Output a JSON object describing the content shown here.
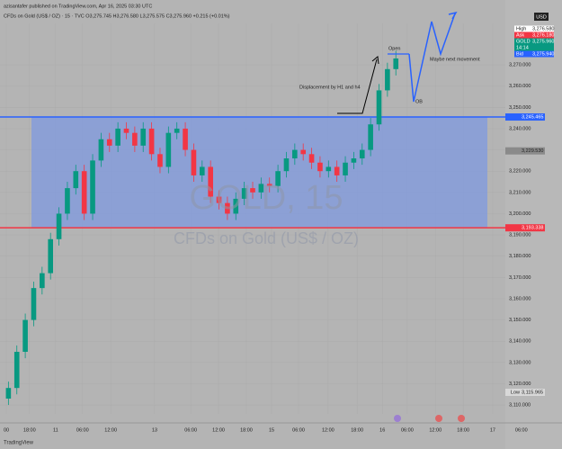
{
  "chart_data": {
    "type": "candlestick",
    "header": "azisantafer published on TradingView.com, Apr 16, 2025 03:30 UTC",
    "subheader": "CFDs on Gold (US$ / OZ) · 15 · TVC  O3,275.745  H3,276.580  L3,275.575  C3,275.960  +0.215 (+0.01%)",
    "watermark": "GOLD, 15",
    "watermark_sub": "CFDs on Gold (US$ / OZ)",
    "annotations": [
      "Displacement by H1 and h4",
      "Open",
      "Maybe next movement",
      "OB"
    ],
    "footer": "TradingView",
    "up_color": "#089981",
    "down_color": "#f23645",
    "xlim": [
      0,
      120
    ],
    "ylim": [
      3105.8,
      3289.5
    ],
    "xticks": [
      {
        "value": 1.5,
        "label": "00"
      },
      {
        "value": 7,
        "label": "18:00"
      },
      {
        "value": 13.2,
        "label": "11"
      },
      {
        "value": 19.6,
        "label": "06:00"
      },
      {
        "value": 26.3,
        "label": "12:00"
      },
      {
        "value": 36.7,
        "label": "13"
      },
      {
        "value": 45.3,
        "label": "06:00"
      },
      {
        "value": 51.9,
        "label": "12:00"
      },
      {
        "value": 58.5,
        "label": "18:00"
      },
      {
        "value": 64.5,
        "label": "15"
      },
      {
        "value": 70.9,
        "label": "06:00"
      },
      {
        "value": 77.9,
        "label": "12:00"
      },
      {
        "value": 84.8,
        "label": "18:00"
      },
      {
        "value": 90.8,
        "label": "16"
      },
      {
        "value": 96.7,
        "label": "06:00"
      },
      {
        "value": 103.4,
        "label": "12:00"
      },
      {
        "value": 110,
        "label": "18:00"
      },
      {
        "value": 117,
        "label": "17"
      },
      {
        "value": 123.8,
        "label": "06:00"
      }
    ],
    "yticks": [
      {
        "value": 3110,
        "label": "3,110.000"
      },
      {
        "value": 3120,
        "label": "3,120.000"
      },
      {
        "value": 3130,
        "label": "3,130.000"
      },
      {
        "value": 3140,
        "label": "3,140.000"
      },
      {
        "value": 3150,
        "label": "3,150.000"
      },
      {
        "value": 3160,
        "label": "3,160.000"
      },
      {
        "value": 3170,
        "label": "3,170.000"
      },
      {
        "value": 3180,
        "label": "3,180.000"
      },
      {
        "value": 3190,
        "label": "3,190.000"
      },
      {
        "value": 3200,
        "label": "3,200.000"
      },
      {
        "value": 3210,
        "label": "3,210.000"
      },
      {
        "value": 3220,
        "label": "3,220.000"
      },
      {
        "value": 3230,
        "label": "3,230.000"
      },
      {
        "value": 3240,
        "label": "3,240.000"
      },
      {
        "value": 3250,
        "label": "3,250.000"
      },
      {
        "value": 3260,
        "label": "3,260.000"
      },
      {
        "value": 3270,
        "label": "3,270.000"
      }
    ],
    "x": [
      2,
      4,
      6,
      8,
      10,
      12,
      14,
      16,
      18,
      20,
      22,
      24,
      26,
      28,
      30,
      32,
      34,
      36,
      38,
      40,
      42,
      44,
      46,
      48,
      50,
      52,
      54,
      56,
      58,
      60,
      62,
      64,
      66,
      68,
      70,
      72,
      74,
      76,
      78,
      80,
      82,
      84,
      86,
      88,
      90,
      92,
      94
    ],
    "open": [
      3113,
      3118,
      3135,
      3150,
      3165,
      3172,
      3188,
      3200,
      3212,
      3220,
      3200,
      3225,
      3235,
      3232,
      3240,
      3238,
      3232,
      3240,
      3228,
      3222,
      3238,
      3240,
      3230,
      3218,
      3222,
      3208,
      3205,
      3200,
      3207,
      3212,
      3210,
      3214,
      3213,
      3220,
      3226,
      3230,
      3228,
      3224,
      3220,
      3222,
      3218,
      3224,
      3226,
      3230,
      3242,
      3258,
      3268
    ],
    "high": [
      3121,
      3138,
      3153,
      3168,
      3175,
      3191,
      3203,
      3215,
      3223,
      3223,
      3228,
      3238,
      3238,
      3243,
      3243,
      3241,
      3243,
      3243,
      3231,
      3241,
      3243,
      3243,
      3233,
      3225,
      3225,
      3211,
      3208,
      3210,
      3215,
      3215,
      3217,
      3217,
      3223,
      3229,
      3233,
      3233,
      3231,
      3227,
      3225,
      3225,
      3227,
      3229,
      3233,
      3245,
      3261,
      3271,
      3276.58
    ],
    "low": [
      3110,
      3115,
      3132,
      3147,
      3162,
      3169,
      3185,
      3197,
      3209,
      3197,
      3197,
      3222,
      3229,
      3229,
      3235,
      3229,
      3229,
      3225,
      3219,
      3219,
      3235,
      3227,
      3215,
      3215,
      3205,
      3202,
      3197,
      3197,
      3204,
      3207,
      3207,
      3210,
      3210,
      3217,
      3223,
      3225,
      3221,
      3217,
      3217,
      3215,
      3215,
      3221,
      3223,
      3227,
      3239,
      3255,
      3265
    ],
    "close": [
      3118,
      3135,
      3150,
      3165,
      3172,
      3188,
      3200,
      3212,
      3220,
      3200,
      3225,
      3235,
      3232,
      3240,
      3238,
      3232,
      3240,
      3228,
      3222,
      3238,
      3240,
      3230,
      3218,
      3222,
      3208,
      3205,
      3200,
      3207,
      3212,
      3210,
      3214,
      3213,
      3220,
      3226,
      3230,
      3228,
      3224,
      3220,
      3222,
      3218,
      3224,
      3226,
      3230,
      3242,
      3258,
      3268,
      3273
    ],
    "zone": {
      "top": 3245.465,
      "bottom": 3193.338,
      "color": "#7f9ae0"
    },
    "levels": [
      {
        "value": 3245.465,
        "label": "3,245.465",
        "color": "#2962ff"
      },
      {
        "value": 3193.338,
        "label": "3,193.338",
        "color": "#f23645"
      },
      {
        "value": 3229.53,
        "label": "3,229.530",
        "color": "#8a8a8a"
      },
      {
        "value": 3115.965,
        "label": "3,115.965",
        "name": "Low",
        "color": "#d8d8d8"
      }
    ],
    "quote": [
      {
        "name": "High",
        "label": "3,276.580",
        "color": "#ffffff"
      },
      {
        "name": "Ask",
        "label": "3,276.180",
        "color": "#f23645"
      },
      {
        "name": "GOLD",
        "label": "3,275.960",
        "color": "#089981"
      },
      {
        "name": "14:14",
        "label": "",
        "color": "#089981"
      },
      {
        "name": "Bid",
        "label": "3,275.940",
        "color": "#2962ff"
      }
    ],
    "currency": "USD"
  }
}
